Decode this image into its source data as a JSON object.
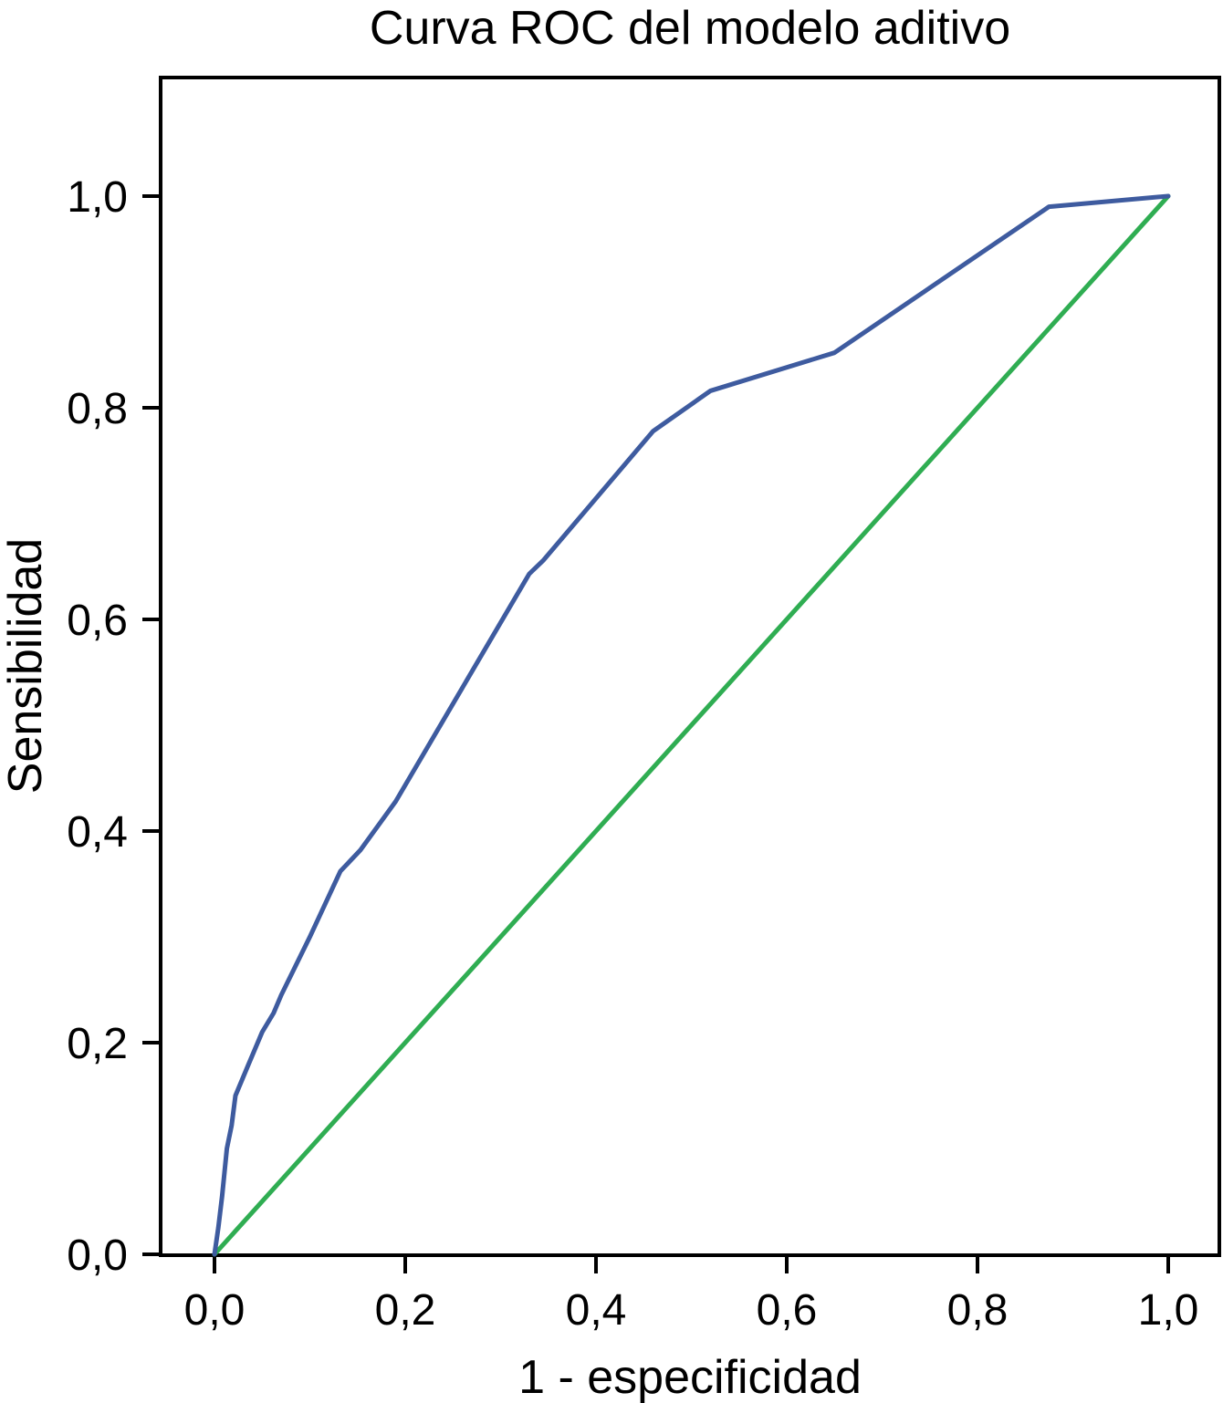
{
  "figure": {
    "background": "#ffffff",
    "text_color": "#000000",
    "frame_color": "#000000"
  },
  "chart_data": {
    "type": "line",
    "title": "Curva ROC del modelo aditivo",
    "xlabel": "1 - especificidad",
    "ylabel": "Sensibilidad",
    "xlim": [
      0,
      1
    ],
    "ylim": [
      0,
      1
    ],
    "grid": false,
    "legend": "none",
    "x_ticks": [
      0,
      0.2,
      0.4,
      0.6,
      0.8,
      1.0
    ],
    "x_ticklabels": [
      "0,0",
      "0,2",
      "0,4",
      "0,6",
      "0,8",
      "1,0"
    ],
    "y_ticks": [
      0,
      0.2,
      0.4,
      0.6,
      0.8,
      1.0
    ],
    "y_ticklabels": [
      "0,0",
      "0,2",
      "0,4",
      "0,6",
      "0,8",
      "1,0"
    ],
    "series": [
      {
        "name": "curva-roc",
        "color": "#3E5B9F",
        "stroke_width": 5,
        "points": [
          [
            0.0,
            0.0
          ],
          [
            0.004,
            0.025
          ],
          [
            0.008,
            0.055
          ],
          [
            0.013,
            0.1
          ],
          [
            0.018,
            0.122
          ],
          [
            0.022,
            0.15
          ],
          [
            0.035,
            0.178
          ],
          [
            0.05,
            0.21
          ],
          [
            0.062,
            0.228
          ],
          [
            0.07,
            0.245
          ],
          [
            0.1,
            0.3
          ],
          [
            0.132,
            0.362
          ],
          [
            0.153,
            0.382
          ],
          [
            0.19,
            0.428
          ],
          [
            0.33,
            0.643
          ],
          [
            0.345,
            0.656
          ],
          [
            0.46,
            0.778
          ],
          [
            0.52,
            0.816
          ],
          [
            0.65,
            0.852
          ],
          [
            0.875,
            0.99
          ],
          [
            1.0,
            1.0
          ]
        ]
      },
      {
        "name": "linea-de-referencia",
        "color": "#2FAD52",
        "stroke_width": 5,
        "points": [
          [
            0.0,
            0.0
          ],
          [
            1.0,
            1.0
          ]
        ]
      }
    ]
  }
}
